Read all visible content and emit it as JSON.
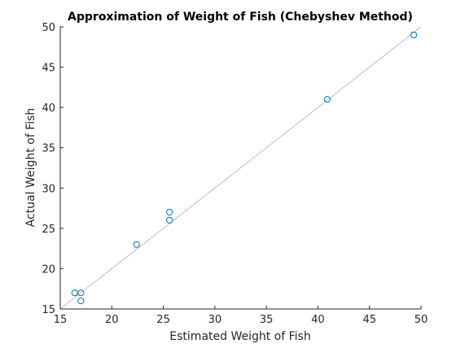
{
  "chart_data": {
    "type": "scatter",
    "title": "Approximation of Weight of Fish (Chebyshev Method)",
    "xlabel": "Estimated Weight of Fish",
    "ylabel": "Actual Weight of Fish",
    "xlim": [
      15,
      50
    ],
    "ylim": [
      15,
      50
    ],
    "xticks": [
      "15",
      "20",
      "25",
      "30",
      "35",
      "40",
      "45",
      "50"
    ],
    "yticks": [
      "15",
      "20",
      "25",
      "30",
      "35",
      "40",
      "45",
      "50"
    ],
    "grid": false,
    "legend": "none",
    "reference_line": {
      "x": [
        15,
        50
      ],
      "y": [
        15,
        50
      ],
      "color": "#bdbdbd"
    },
    "marker_color": "#0072bd",
    "points": [
      {
        "x": 16.4,
        "y": 17
      },
      {
        "x": 17.0,
        "y": 17
      },
      {
        "x": 17.0,
        "y": 16
      },
      {
        "x": 22.4,
        "y": 23
      },
      {
        "x": 25.6,
        "y": 26
      },
      {
        "x": 25.6,
        "y": 27
      },
      {
        "x": 40.9,
        "y": 41
      },
      {
        "x": 49.3,
        "y": 49
      }
    ]
  }
}
